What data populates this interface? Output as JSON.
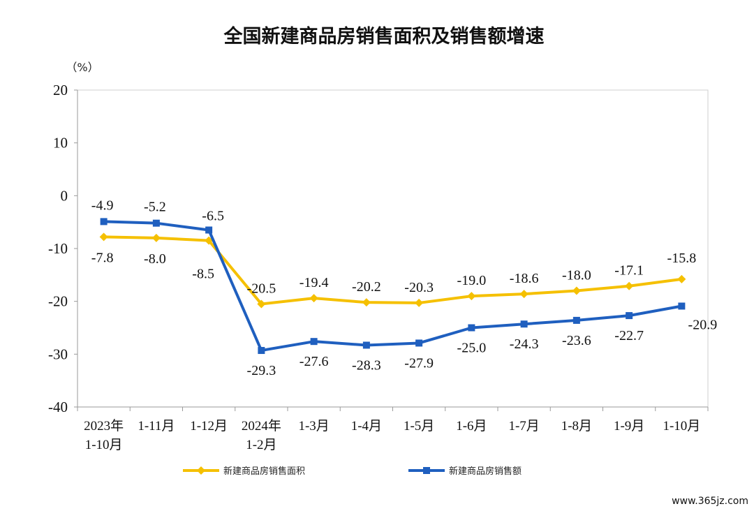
{
  "chart_data": {
    "type": "line",
    "title": "全国新建商品房销售面积及销售额增速",
    "unit": "（%）",
    "ylim": [
      -40,
      20
    ],
    "yticks": [
      20,
      10,
      0,
      -10,
      -20,
      -30,
      -40
    ],
    "categories": [
      [
        "2023年",
        "1-10月"
      ],
      [
        "1-11月"
      ],
      [
        "1-12月"
      ],
      [
        "2024年",
        "1-2月"
      ],
      [
        "1-3月"
      ],
      [
        "1-4月"
      ],
      [
        "1-5月"
      ],
      [
        "1-6月"
      ],
      [
        "1-7月"
      ],
      [
        "1-8月"
      ],
      [
        "1-9月"
      ],
      [
        "1-10月"
      ]
    ],
    "series": [
      {
        "name": "新建商品房销售面积",
        "color": "#F5C000",
        "marker": "diamond",
        "label_position": "mixed",
        "values": [
          -7.8,
          -8.0,
          -8.5,
          -20.5,
          -19.4,
          -20.2,
          -20.3,
          -19.0,
          -18.6,
          -18.0,
          -17.1,
          -15.8
        ]
      },
      {
        "name": "新建商品房销售额",
        "color": "#1F5FBF",
        "marker": "square",
        "label_position": "mixed",
        "values": [
          -4.9,
          -5.2,
          -6.5,
          -29.3,
          -27.6,
          -28.3,
          -27.9,
          -25.0,
          -24.3,
          -23.6,
          -22.7,
          -20.9
        ]
      }
    ],
    "legend_position": "bottom",
    "grid": false
  },
  "watermark": "www.365jz.com"
}
